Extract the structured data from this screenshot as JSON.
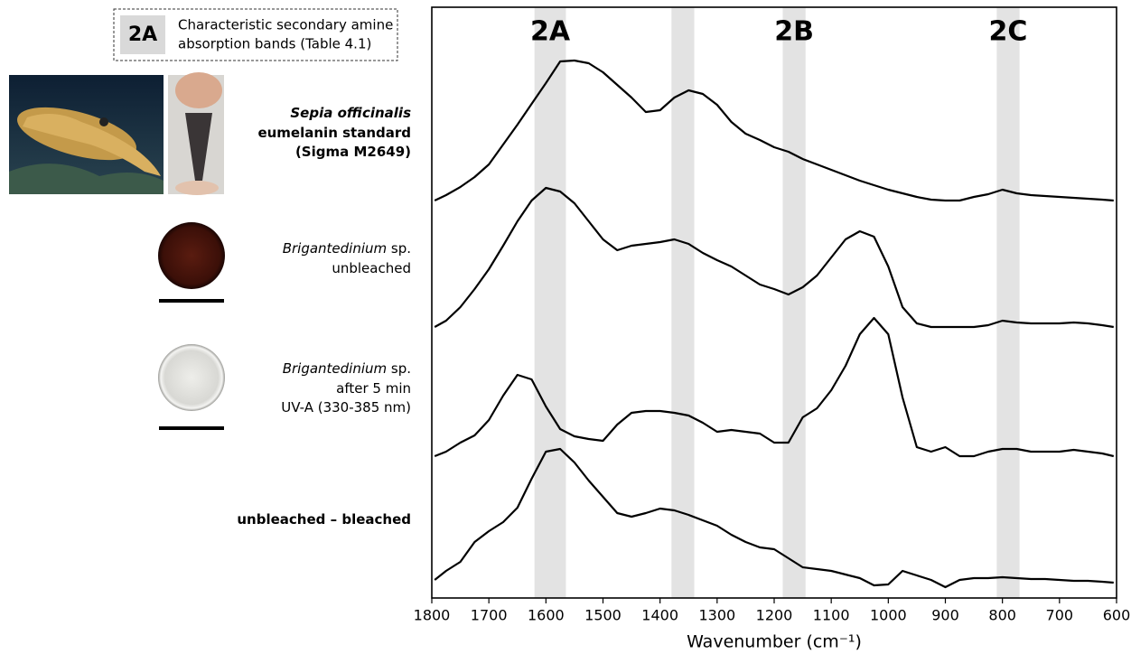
{
  "chart_data": {
    "type": "line",
    "xlabel": "Wavenumber (cm⁻¹)",
    "xlim": [
      1800,
      600
    ],
    "xticks": [
      1800,
      1700,
      1600,
      1500,
      1400,
      1300,
      1200,
      1100,
      1000,
      900,
      800,
      700,
      600
    ],
    "ylim": [
      0,
      65.4
    ],
    "legend_note": {
      "key": "2A",
      "lines": [
        "Characteristic secondary amine",
        "absorption bands (Table 4.1)"
      ]
    },
    "bands": [
      {
        "from": 1620,
        "to": 1565,
        "label": "2A"
      },
      {
        "from": 1380,
        "to": 1340
      },
      {
        "from": 1185,
        "to": 1145,
        "label": "2B"
      },
      {
        "from": 810,
        "to": 770,
        "label": "2C"
      }
    ],
    "band_color": "#e3e3e3",
    "x": [
      1795,
      1775,
      1750,
      1725,
      1700,
      1675,
      1650,
      1625,
      1600,
      1575,
      1550,
      1525,
      1500,
      1475,
      1450,
      1425,
      1400,
      1375,
      1350,
      1325,
      1300,
      1275,
      1250,
      1225,
      1200,
      1175,
      1150,
      1125,
      1100,
      1075,
      1050,
      1025,
      1000,
      975,
      950,
      925,
      900,
      875,
      850,
      825,
      800,
      775,
      750,
      725,
      700,
      675,
      650,
      625,
      605
    ],
    "series": [
      {
        "name": [
          [
            {
              "text": "Sepia officinalis",
              "italic": true,
              "bold": true
            }
          ],
          [
            {
              "text": "eumelanin standard",
              "bold": true
            }
          ],
          [
            {
              "text": "(Sigma M2649)",
              "bold": true
            }
          ]
        ],
        "color": "#000000",
        "values": [
          44.0,
          44.6,
          45.5,
          46.6,
          48.0,
          50.2,
          52.4,
          54.7,
          57.0,
          59.4,
          59.5,
          59.2,
          58.2,
          56.8,
          55.4,
          53.8,
          54.0,
          55.4,
          56.2,
          55.8,
          54.6,
          52.7,
          51.4,
          50.7,
          49.9,
          49.4,
          48.6,
          48.0,
          47.4,
          46.8,
          46.2,
          45.7,
          45.2,
          44.8,
          44.4,
          44.1,
          44.0,
          44.0,
          44.4,
          44.7,
          45.2,
          44.8,
          44.6,
          44.5,
          44.4,
          44.3,
          44.2,
          44.1,
          44.0
        ]
      },
      {
        "name": [
          [
            {
              "text": "Brigantedinium",
              "italic": true
            },
            {
              "text": " sp."
            }
          ],
          [
            {
              "text": "unbleached"
            }
          ]
        ],
        "color": "#000000",
        "values": [
          30.0,
          30.7,
          32.2,
          34.2,
          36.4,
          39.0,
          41.7,
          44.0,
          45.4,
          45.0,
          43.7,
          41.7,
          39.7,
          38.5,
          39.0,
          39.2,
          39.4,
          39.7,
          39.2,
          38.2,
          37.4,
          36.7,
          35.7,
          34.7,
          34.2,
          33.6,
          34.4,
          35.7,
          37.7,
          39.7,
          40.6,
          40.0,
          36.7,
          32.2,
          30.4,
          30.0,
          30.0,
          30.0,
          30.0,
          30.2,
          30.7,
          30.5,
          30.4,
          30.4,
          30.4,
          30.5,
          30.4,
          30.2,
          30.0
        ]
      },
      {
        "name": [
          [
            {
              "text": "Brigantedinium",
              "italic": true
            },
            {
              "text": " sp."
            }
          ],
          [
            {
              "text": "after 5 min"
            }
          ],
          [
            {
              "text": "UV-A (330-385 nm)"
            }
          ]
        ],
        "color": "#000000",
        "values": [
          15.7,
          16.2,
          17.2,
          18.0,
          19.7,
          22.4,
          24.7,
          24.2,
          21.2,
          18.7,
          17.9,
          17.6,
          17.4,
          19.2,
          20.5,
          20.7,
          20.7,
          20.5,
          20.2,
          19.4,
          18.4,
          18.6,
          18.4,
          18.2,
          17.2,
          17.2,
          20.0,
          21.0,
          23.0,
          25.7,
          29.2,
          31.0,
          29.2,
          22.2,
          16.7,
          16.2,
          16.7,
          15.7,
          15.7,
          16.2,
          16.5,
          16.5,
          16.2,
          16.2,
          16.2,
          16.4,
          16.2,
          16.0,
          15.7
        ]
      },
      {
        "name": [
          [
            {
              "text": "unbleached – bleached",
              "bold": true
            }
          ]
        ],
        "color": "#000000",
        "values": [
          2.0,
          3.0,
          4.0,
          6.2,
          7.4,
          8.4,
          10.0,
          13.2,
          16.2,
          16.5,
          15.0,
          13.0,
          11.2,
          9.4,
          9.0,
          9.4,
          9.9,
          9.7,
          9.2,
          8.6,
          8.0,
          7.0,
          6.2,
          5.6,
          5.4,
          4.4,
          3.4,
          3.2,
          3.0,
          2.6,
          2.2,
          1.4,
          1.5,
          3.0,
          2.5,
          2.0,
          1.2,
          2.0,
          2.2,
          2.2,
          2.3,
          2.2,
          2.1,
          2.1,
          2.0,
          1.9,
          1.9,
          1.8,
          1.7
        ]
      }
    ]
  }
}
